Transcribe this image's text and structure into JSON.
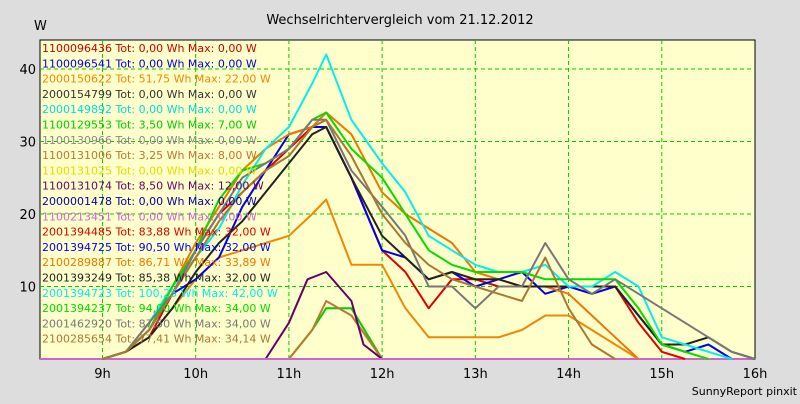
{
  "chart_data": {
    "type": "line",
    "title": "Wechselrichtervergleich vom 21.12.2012",
    "ylabel": "W",
    "xlabel": "",
    "ylim": [
      0,
      44
    ],
    "xlim": [
      8.33,
      16
    ],
    "y_ticks": [
      10,
      20,
      30,
      40
    ],
    "x_ticks": [
      {
        "value": 9,
        "label": "9h"
      },
      {
        "value": 10,
        "label": "10h"
      },
      {
        "value": 11,
        "label": "11h"
      },
      {
        "value": 12,
        "label": "12h"
      },
      {
        "value": 13,
        "label": "13h"
      },
      {
        "value": 14,
        "label": "14h"
      },
      {
        "value": 15,
        "label": "15h"
      },
      {
        "value": 16,
        "label": "16h"
      }
    ],
    "grid": true,
    "legend_position": "top-left",
    "footer": "SunnyReport pinxit",
    "colors": {
      "plot_background": "#ffffcc",
      "outer_background": "#dddddd",
      "grid": "#00cc00"
    },
    "series": [
      {
        "name": "1100096436 Tot: 0,00 Wh Max: 0,00 W",
        "color": "#cc0000",
        "points": [
          [
            8.33,
            0
          ],
          [
            16,
            0
          ]
        ]
      },
      {
        "name": "1100096541 Tot: 0,00 Wh Max: 0,00 W",
        "color": "#0000cc",
        "points": [
          [
            8.33,
            0
          ],
          [
            16,
            0
          ]
        ]
      },
      {
        "name": "2000150622 Tot: 51,75 Wh Max: 22,00 W",
        "color": "#ee8800",
        "points": [
          [
            9.0,
            0
          ],
          [
            9.25,
            1
          ],
          [
            9.5,
            3
          ],
          [
            9.75,
            7
          ],
          [
            10.0,
            11
          ],
          [
            10.25,
            14
          ],
          [
            10.5,
            15
          ],
          [
            10.75,
            16
          ],
          [
            11.0,
            17
          ],
          [
            11.25,
            20
          ],
          [
            11.4,
            22
          ],
          [
            11.67,
            13
          ],
          [
            12.0,
            13
          ],
          [
            12.25,
            7
          ],
          [
            12.5,
            3
          ],
          [
            12.75,
            3
          ],
          [
            13.0,
            3
          ],
          [
            13.25,
            3
          ],
          [
            13.5,
            4
          ],
          [
            13.75,
            6
          ],
          [
            14.0,
            6
          ],
          [
            14.25,
            4
          ],
          [
            14.5,
            2
          ],
          [
            14.75,
            0
          ]
        ]
      },
      {
        "name": "2000154799 Tot: 0,00 Wh Max: 0,00 W",
        "color": "#333333",
        "points": [
          [
            8.33,
            0
          ],
          [
            16,
            0
          ]
        ]
      },
      {
        "name": "2000149892 Tot: 0,00 Wh Max: 0,00 W",
        "color": "#00dddd",
        "points": [
          [
            8.33,
            0
          ],
          [
            16,
            0
          ]
        ]
      },
      {
        "name": "1100129553 Tot: 3,50 Wh Max: 7,00 W",
        "color": "#00cc00",
        "points": [
          [
            11.0,
            0
          ],
          [
            11.25,
            4
          ],
          [
            11.4,
            7
          ],
          [
            11.67,
            7
          ],
          [
            12.0,
            0
          ]
        ]
      },
      {
        "name": "1100130966 Tot: 0,00 Wh Max: 0,00 W",
        "color": "#888888",
        "points": [
          [
            8.33,
            0
          ],
          [
            16,
            0
          ]
        ]
      },
      {
        "name": "1100131006 Tot: 3,25 Wh Max: 8,00 W",
        "color": "#bb7733",
        "points": [
          [
            11.0,
            0
          ],
          [
            11.25,
            4
          ],
          [
            11.4,
            8
          ],
          [
            11.67,
            6
          ],
          [
            12.0,
            0
          ]
        ]
      },
      {
        "name": "1100131025 Tot: 0,00 Wh Max: 0,00 W",
        "color": "#dddd00",
        "points": [
          [
            8.33,
            0
          ],
          [
            16,
            0
          ]
        ]
      },
      {
        "name": "1100131074 Tot: 8,50 Wh Max: 12,00 W",
        "color": "#660066",
        "points": [
          [
            10.75,
            0
          ],
          [
            11.0,
            5
          ],
          [
            11.2,
            11
          ],
          [
            11.4,
            12
          ],
          [
            11.67,
            8
          ],
          [
            11.8,
            2
          ],
          [
            12.0,
            0
          ]
        ]
      },
      {
        "name": "2000001478 Tot: 0,00 Wh Max: 0,00 W",
        "color": "#0000aa",
        "points": [
          [
            8.33,
            0
          ],
          [
            16,
            0
          ]
        ]
      },
      {
        "name": "1100213451 Tot: 0,00 Wh Max: 0,00 W",
        "color": "#cc66cc",
        "points": [
          [
            8.33,
            0
          ],
          [
            16,
            0
          ]
        ]
      },
      {
        "name": "2001394485 Tot: 83,88 Wh Max: 32,00 W",
        "color": "#dd0000",
        "points": [
          [
            9.0,
            0
          ],
          [
            9.25,
            1
          ],
          [
            9.5,
            3
          ],
          [
            9.75,
            9
          ],
          [
            10.0,
            15
          ],
          [
            10.25,
            20
          ],
          [
            10.5,
            23
          ],
          [
            10.75,
            26
          ],
          [
            11.0,
            29
          ],
          [
            11.25,
            32
          ],
          [
            11.4,
            32
          ],
          [
            11.67,
            25
          ],
          [
            12.0,
            15
          ],
          [
            12.25,
            12
          ],
          [
            12.5,
            7
          ],
          [
            12.75,
            11
          ],
          [
            13.0,
            11
          ],
          [
            13.25,
            10
          ],
          [
            13.5,
            10
          ],
          [
            13.75,
            10
          ],
          [
            14.0,
            10
          ],
          [
            14.25,
            10
          ],
          [
            14.5,
            10
          ],
          [
            14.75,
            5
          ],
          [
            15.0,
            1
          ],
          [
            15.25,
            0
          ]
        ]
      },
      {
        "name": "2001394725 Tot: 90,50 Wh Max: 32,00 W",
        "color": "#0000ee",
        "points": [
          [
            9.0,
            0
          ],
          [
            9.25,
            1
          ],
          [
            9.5,
            4
          ],
          [
            9.75,
            9
          ],
          [
            10.0,
            11
          ],
          [
            10.25,
            14
          ],
          [
            10.5,
            21
          ],
          [
            10.75,
            26
          ],
          [
            11.0,
            31
          ],
          [
            11.25,
            32
          ],
          [
            11.4,
            32
          ],
          [
            11.67,
            25
          ],
          [
            12.0,
            15
          ],
          [
            12.25,
            14
          ],
          [
            12.5,
            11
          ],
          [
            12.75,
            12
          ],
          [
            13.0,
            10
          ],
          [
            13.25,
            11
          ],
          [
            13.5,
            12
          ],
          [
            13.75,
            9
          ],
          [
            14.0,
            10
          ],
          [
            14.25,
            9
          ],
          [
            14.5,
            10
          ],
          [
            14.75,
            6
          ],
          [
            15.0,
            2
          ],
          [
            15.25,
            1
          ],
          [
            15.5,
            2
          ],
          [
            15.75,
            0
          ]
        ]
      },
      {
        "name": "2100289887 Tot: 86,71 Wh Max: 33,89 W",
        "color": "#ee7700",
        "points": [
          [
            9.0,
            0
          ],
          [
            9.25,
            1
          ],
          [
            9.5,
            4
          ],
          [
            9.75,
            10
          ],
          [
            10.0,
            16
          ],
          [
            10.25,
            21
          ],
          [
            10.5,
            26
          ],
          [
            10.75,
            29
          ],
          [
            11.0,
            31
          ],
          [
            11.25,
            32
          ],
          [
            11.4,
            34
          ],
          [
            11.67,
            31
          ],
          [
            12.0,
            23
          ],
          [
            12.25,
            20
          ],
          [
            12.5,
            18
          ],
          [
            12.75,
            16
          ],
          [
            13.0,
            12
          ],
          [
            13.25,
            11
          ],
          [
            13.5,
            10
          ],
          [
            13.75,
            10
          ],
          [
            14.0,
            9
          ],
          [
            14.25,
            6
          ],
          [
            14.5,
            3
          ],
          [
            14.75,
            0
          ]
        ]
      },
      {
        "name": "2001393249 Tot: 85,38 Wh Max: 32,00 W",
        "color": "#222222",
        "points": [
          [
            9.0,
            0
          ],
          [
            9.25,
            1
          ],
          [
            9.5,
            3
          ],
          [
            9.75,
            7
          ],
          [
            10.0,
            12
          ],
          [
            10.25,
            16
          ],
          [
            10.5,
            19
          ],
          [
            10.75,
            23
          ],
          [
            11.0,
            27
          ],
          [
            11.25,
            31
          ],
          [
            11.4,
            32
          ],
          [
            11.67,
            25
          ],
          [
            12.0,
            17
          ],
          [
            12.25,
            14
          ],
          [
            12.5,
            11
          ],
          [
            12.75,
            12
          ],
          [
            13.0,
            11
          ],
          [
            13.25,
            11
          ],
          [
            13.5,
            10
          ],
          [
            13.75,
            10
          ],
          [
            14.0,
            10
          ],
          [
            14.25,
            10
          ],
          [
            14.5,
            10
          ],
          [
            14.75,
            6
          ],
          [
            15.0,
            2
          ],
          [
            15.25,
            2
          ],
          [
            15.5,
            3
          ],
          [
            15.75,
            1
          ],
          [
            16.0,
            0
          ]
        ]
      },
      {
        "name": "2001394723 Tot: 100,25 Wh Max: 42,00 W",
        "color": "#00eeee",
        "points": [
          [
            9.0,
            0
          ],
          [
            9.25,
            1
          ],
          [
            9.5,
            5
          ],
          [
            9.75,
            10
          ],
          [
            10.0,
            14
          ],
          [
            10.25,
            18
          ],
          [
            10.5,
            24
          ],
          [
            10.75,
            29
          ],
          [
            11.0,
            32
          ],
          [
            11.25,
            38
          ],
          [
            11.4,
            42
          ],
          [
            11.67,
            33
          ],
          [
            12.0,
            27
          ],
          [
            12.25,
            23
          ],
          [
            12.5,
            17
          ],
          [
            12.75,
            15
          ],
          [
            13.0,
            13
          ],
          [
            13.25,
            12
          ],
          [
            13.5,
            12
          ],
          [
            13.75,
            13
          ],
          [
            14.0,
            10
          ],
          [
            14.25,
            10
          ],
          [
            14.5,
            12
          ],
          [
            14.75,
            10
          ],
          [
            15.0,
            3
          ],
          [
            15.25,
            2
          ],
          [
            15.5,
            1
          ],
          [
            15.75,
            0
          ]
        ]
      },
      {
        "name": "2001394237 Tot: 94,00 Wh Max: 34,00 W",
        "color": "#00dd00",
        "points": [
          [
            9.0,
            0
          ],
          [
            9.25,
            1
          ],
          [
            9.5,
            4
          ],
          [
            9.75,
            10
          ],
          [
            10.0,
            15
          ],
          [
            10.25,
            22
          ],
          [
            10.5,
            26
          ],
          [
            10.75,
            27
          ],
          [
            11.0,
            29
          ],
          [
            11.25,
            33
          ],
          [
            11.4,
            34
          ],
          [
            11.67,
            29
          ],
          [
            12.0,
            25
          ],
          [
            12.25,
            20
          ],
          [
            12.5,
            15
          ],
          [
            12.75,
            13
          ],
          [
            13.0,
            12
          ],
          [
            13.25,
            12
          ],
          [
            13.5,
            12
          ],
          [
            13.75,
            11
          ],
          [
            14.0,
            11
          ],
          [
            14.25,
            11
          ],
          [
            14.5,
            11
          ],
          [
            14.75,
            7
          ],
          [
            15.0,
            2
          ],
          [
            15.25,
            1
          ],
          [
            15.5,
            0
          ]
        ]
      },
      {
        "name": "2001462920 Tot: 87,50 Wh Max: 34,00 W",
        "color": "#777777",
        "points": [
          [
            9.0,
            0
          ],
          [
            9.25,
            1
          ],
          [
            9.5,
            5
          ],
          [
            9.75,
            9
          ],
          [
            10.0,
            15
          ],
          [
            10.25,
            20
          ],
          [
            10.5,
            25
          ],
          [
            10.75,
            27
          ],
          [
            11.0,
            29
          ],
          [
            11.25,
            33
          ],
          [
            11.4,
            33
          ],
          [
            11.67,
            26
          ],
          [
            12.0,
            21
          ],
          [
            12.25,
            17
          ],
          [
            12.5,
            10
          ],
          [
            12.75,
            10
          ],
          [
            13.0,
            7
          ],
          [
            13.25,
            10
          ],
          [
            13.5,
            10
          ],
          [
            13.75,
            16
          ],
          [
            14.0,
            11
          ],
          [
            14.25,
            9
          ],
          [
            14.5,
            11
          ],
          [
            14.75,
            9
          ],
          [
            15.0,
            7
          ],
          [
            15.25,
            5
          ],
          [
            15.5,
            3
          ],
          [
            15.75,
            1
          ],
          [
            16.0,
            0
          ]
        ]
      },
      {
        "name": "2100285654 Tot: 77,41 Wh Max: 34,14 W",
        "color": "#aa7733",
        "points": [
          [
            9.0,
            0
          ],
          [
            9.25,
            1
          ],
          [
            9.5,
            4
          ],
          [
            9.75,
            9
          ],
          [
            10.0,
            14
          ],
          [
            10.25,
            19
          ],
          [
            10.5,
            23
          ],
          [
            10.75,
            26
          ],
          [
            11.0,
            28
          ],
          [
            11.25,
            32
          ],
          [
            11.4,
            33
          ],
          [
            11.67,
            28
          ],
          [
            12.0,
            20
          ],
          [
            12.25,
            16
          ],
          [
            12.5,
            13
          ],
          [
            12.75,
            11
          ],
          [
            13.0,
            10
          ],
          [
            13.25,
            9
          ],
          [
            13.5,
            8
          ],
          [
            13.75,
            14
          ],
          [
            14.0,
            7
          ],
          [
            14.25,
            2
          ],
          [
            14.5,
            0
          ]
        ]
      }
    ]
  }
}
